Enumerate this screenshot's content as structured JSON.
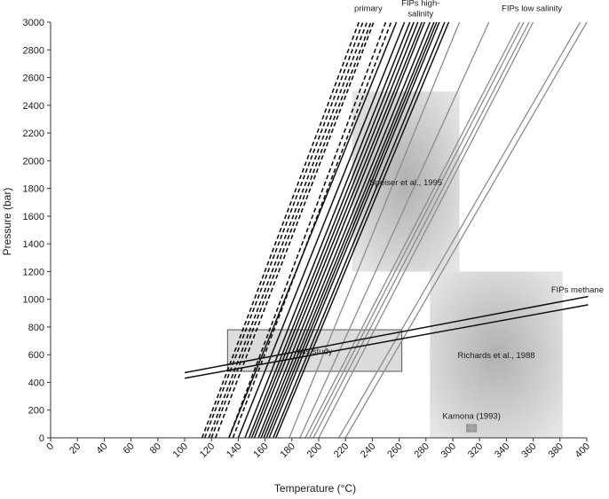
{
  "chart_data": {
    "type": "line",
    "xlabel": "Temperature (°C)",
    "ylabel": "Pressure (bar)",
    "xlim": [
      0,
      400
    ],
    "ylim": [
      0,
      3000
    ],
    "x_ticks": [
      "0",
      "20",
      "40",
      "60",
      "80",
      "100",
      "120",
      "140",
      "160",
      "180",
      "200",
      "220",
      "240",
      "260",
      "280",
      "300",
      "320",
      "340",
      "360",
      "380",
      "400"
    ],
    "y_ticks": [
      "0",
      "200",
      "400",
      "600",
      "800",
      "1000",
      "1200",
      "1400",
      "1600",
      "1800",
      "2000",
      "2200",
      "2400",
      "2600",
      "2800",
      "3000"
    ],
    "grid": false,
    "legend": "none",
    "colors": {
      "primary": "#111111",
      "high_salinity": "#111111",
      "low_salinity": "#8c8c8c",
      "methane": "#111111"
    },
    "regions": [
      {
        "label": "Speiser et al., 1995",
        "x": [
          225,
          305
        ],
        "y": [
          1200,
          2500
        ],
        "fill": "#bdbdbd"
      },
      {
        "label": "Richards et al., 1988",
        "x": [
          283,
          382
        ],
        "y": [
          0,
          1200
        ],
        "fill": "#bdbdbd"
      },
      {
        "label": "this study",
        "x": [
          132,
          262
        ],
        "y": [
          480,
          780
        ],
        "fill": "#cfcfcf"
      },
      {
        "label": "Kamona (1993)",
        "x": [
          310,
          318
        ],
        "y": [
          40,
          100
        ],
        "fill": "#7a7a7a"
      }
    ],
    "series": [
      {
        "name": "primary",
        "style": "dashed",
        "lines": [
          [
            [
              113,
              0
            ],
            [
              230,
              3000
            ]
          ],
          [
            [
              115,
              0
            ],
            [
              233,
              3000
            ]
          ],
          [
            [
              118,
              0
            ],
            [
              236,
              3000
            ]
          ],
          [
            [
              120,
              0
            ],
            [
              239,
              3000
            ]
          ],
          [
            [
              123,
              0
            ],
            [
              241,
              3000
            ]
          ],
          [
            [
              133,
              0
            ],
            [
              250,
              3000
            ]
          ],
          [
            [
              136,
              0
            ],
            [
              254,
              3000
            ]
          ]
        ]
      },
      {
        "name": "FIPs high-salinity",
        "style": "solid",
        "lines": [
          [
            [
              133,
              0
            ],
            [
              258,
              3000
            ]
          ],
          [
            [
              140,
              0
            ],
            [
              264,
              3000
            ]
          ],
          [
            [
              145,
              0
            ],
            [
              268,
              3000
            ]
          ],
          [
            [
              148,
              0
            ],
            [
              271,
              3000
            ]
          ],
          [
            [
              150,
              0
            ],
            [
              274,
              3000
            ]
          ],
          [
            [
              152,
              0
            ],
            [
              277,
              3000
            ]
          ],
          [
            [
              155,
              0
            ],
            [
              279,
              3000
            ]
          ],
          [
            [
              157,
              0
            ],
            [
              283,
              3000
            ]
          ],
          [
            [
              159,
              0
            ],
            [
              286,
              3000
            ]
          ],
          [
            [
              161,
              0
            ],
            [
              288,
              3000
            ]
          ],
          [
            [
              163,
              0
            ],
            [
              290,
              3000
            ]
          ],
          [
            [
              166,
              0
            ],
            [
              294,
              3000
            ]
          ],
          [
            [
              168,
              0
            ],
            [
              297,
              3000
            ]
          ]
        ]
      },
      {
        "name": "FIPs low salinity",
        "style": "solid-gray",
        "lines": [
          [
            [
              178,
              0
            ],
            [
              305,
              3000
            ]
          ],
          [
            [
              186,
              0
            ],
            [
              327,
              3000
            ]
          ],
          [
            [
              190,
              0
            ],
            [
              350,
              3000
            ]
          ],
          [
            [
              193,
              0
            ],
            [
              353,
              3000
            ]
          ],
          [
            [
              196,
              0
            ],
            [
              357,
              3000
            ]
          ],
          [
            [
              200,
              0
            ],
            [
              360,
              3000
            ]
          ],
          [
            [
              215,
              0
            ],
            [
              395,
              3000
            ]
          ],
          [
            [
              220,
              0
            ],
            [
              400,
              3000
            ]
          ]
        ]
      },
      {
        "name": "FIPs methane",
        "style": "solid",
        "lines": [
          [
            [
              100,
              470
            ],
            [
              401,
              1020
            ]
          ],
          [
            [
              100,
              430
            ],
            [
              401,
              960
            ]
          ]
        ]
      }
    ],
    "annotations": [
      {
        "text": "primary",
        "x": 237,
        "y": 3080
      },
      {
        "text": "FIPs high-",
        "x": 276,
        "y": 3120
      },
      {
        "text": "salinity",
        "x": 276,
        "y": 3040
      },
      {
        "text": "FIPs low salinity",
        "x": 359,
        "y": 3080
      },
      {
        "text": "FIPs methane",
        "x": 393,
        "y": 1050
      }
    ]
  }
}
